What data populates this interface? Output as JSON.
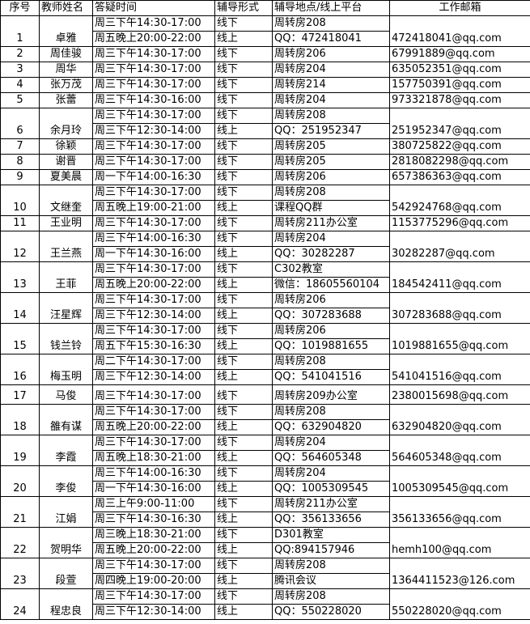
{
  "headers": [
    "序号",
    "教师姓名",
    "答疑时间",
    "辅导形式",
    "辅导地点/线上平台",
    "工作邮箱"
  ],
  "rows": [
    {
      "no": "1",
      "name": "卓雅",
      "email": "472418041@qq.com",
      "slots": [
        {
          "time": "周三下午14:30-17:00",
          "form": "线下",
          "place": "周转房208"
        },
        {
          "time": "周五晚上20:00-22:00",
          "form": "线上",
          "place": "QQ：472418041"
        }
      ]
    },
    {
      "no": "2",
      "name": "周佳骏",
      "email": "67991889@qq.com",
      "slots": [
        {
          "time": "周三下午14:30-17:00",
          "form": "线下",
          "place": "周转房206"
        }
      ]
    },
    {
      "no": "3",
      "name": "周华",
      "email": "635052351@qq.com",
      "slots": [
        {
          "time": "周三下午14:30-17:00",
          "form": "线下",
          "place": "周转房204"
        }
      ]
    },
    {
      "no": "4",
      "name": "张万茂",
      "email": "157750391@qq.com",
      "slots": [
        {
          "time": "周三下午14:30-17:00",
          "form": "线下",
          "place": "周转房214"
        }
      ]
    },
    {
      "no": "5",
      "name": "张蕾",
      "email": "973321878@qq.com",
      "slots": [
        {
          "time": "周三下午14:30-16:00",
          "form": "线下",
          "place": "周转房204"
        }
      ]
    },
    {
      "no": "6",
      "name": "余月玲",
      "email": "251952347@qq.com",
      "slots": [
        {
          "time": "周三下午14:30-17:00",
          "form": "线下",
          "place": "周转房208"
        },
        {
          "time": "周三下午12:30-14:00",
          "form": "线上",
          "place": "QQ：251952347"
        }
      ]
    },
    {
      "no": "7",
      "name": "徐颖",
      "email": "380725822@qq.com",
      "slots": [
        {
          "time": "周三下午14:30-17:00",
          "form": "线下",
          "place": "周转房205"
        }
      ]
    },
    {
      "no": "8",
      "name": "谢晋",
      "email": "2818082298@qq.com",
      "slots": [
        {
          "time": "周三下午14:30-17:00",
          "form": "线下",
          "place": "周转房205"
        }
      ]
    },
    {
      "no": "9",
      "name": "夏美晨",
      "email": "657386363@qq.com",
      "slots": [
        {
          "time": "周一下午14:00-16:30",
          "form": "线下",
          "place": "周转房206"
        }
      ]
    },
    {
      "no": "10",
      "name": "文继奎",
      "email": "542924768@qq.com",
      "slots": [
        {
          "time": "周三下午14:30-17:00",
          "form": "线下",
          "place": "周转房208"
        },
        {
          "time": "周五晚上19:00-21:00",
          "form": "线上",
          "place": "课程QQ群"
        }
      ]
    },
    {
      "no": "11",
      "name": "王业明",
      "email": "1153775296@qq.com",
      "slots": [
        {
          "time": "周三下午14:30-17:00",
          "form": "线下",
          "place": "周转房211办公室"
        }
      ]
    },
    {
      "no": "12",
      "name": "王兰燕",
      "email": "30282287@qq.com",
      "slots": [
        {
          "time": "周三下午14:00-16:30",
          "form": "线下",
          "place": "周转房204"
        },
        {
          "time": "周一下午14:30-16:00",
          "form": "线上",
          "place": "QQ：30282287"
        }
      ]
    },
    {
      "no": "13",
      "name": "王菲",
      "email": "184542411@qq.com",
      "slots": [
        {
          "time": "周三下午14:30-17:00",
          "form": "线下",
          "place": "C302教室"
        },
        {
          "time": "周五晚上20:00-22:00",
          "form": "线上",
          "place": "微信：18605560104"
        }
      ]
    },
    {
      "no": "14",
      "name": "汪星辉",
      "email": "307283688@qq.com",
      "slots": [
        {
          "time": "周三下午14:30-17:00",
          "form": "线下",
          "place": "周转房206"
        },
        {
          "time": "周三下午12:30-14:00",
          "form": "线上",
          "place": "QQ：307283688"
        }
      ]
    },
    {
      "no": "15",
      "name": "钱兰铃",
      "email": "1019881655@qq.com",
      "slots": [
        {
          "time": "周三下午14:30-17:00",
          "form": "线下",
          "place": "周转房206"
        },
        {
          "time": "周五下午15:30-16:30",
          "form": "线上",
          "place": "QQ：1019881655"
        }
      ]
    },
    {
      "no": "16",
      "name": "梅玉明",
      "email": "541041516@qq.com",
      "slots": [
        {
          "time": "周二下午14:30-17:00",
          "form": "线下",
          "place": "周转房208"
        },
        {
          "time": "周三下午12:30-14:00",
          "form": "线上",
          "place": "QQ：541041516"
        }
      ]
    },
    {
      "no": "17",
      "name": "马俊",
      "email": "2380015698@qq.com",
      "tall": true,
      "slots": [
        {
          "time": "周三下午14:30-17:00",
          "form": "线下",
          "place": "周转房209办公室"
        }
      ]
    },
    {
      "no": "18",
      "name": "雒有谋",
      "email": "632904820@qq.com",
      "slots": [
        {
          "time": "周三下午14:30-17:00",
          "form": "线下",
          "place": "周转房208"
        },
        {
          "time": "周五晚上20:00-22:00",
          "form": "线上",
          "place": "QQ：632904820"
        }
      ]
    },
    {
      "no": "19",
      "name": "李霞",
      "email": "564605348@qq.com",
      "slots": [
        {
          "time": "周三下午14:30-17:00",
          "form": "线下",
          "place": "周转房204"
        },
        {
          "time": "周五晚上18:30-21:00",
          "form": "线上",
          "place": "QQ：564605348"
        }
      ]
    },
    {
      "no": "20",
      "name": "李俊",
      "email": "1005309545@qq.com",
      "slots": [
        {
          "time": "周三下午14:00-16:30",
          "form": "线下",
          "place": "周转房204"
        },
        {
          "time": "周一下午14:30-16:00",
          "form": "线上",
          "place": "QQ：1005309545"
        }
      ]
    },
    {
      "no": "21",
      "name": "江娟",
      "email": "356133656@qq.com",
      "slots": [
        {
          "time": "周三上午9:00-11:00",
          "form": "线下",
          "place": "周转房211办公室"
        },
        {
          "time": "周三下午14:30-16:30",
          "form": "线上",
          "place": "QQ：356133656"
        }
      ]
    },
    {
      "no": "22",
      "name": "贺明华",
      "email": "hemh100@qq.com",
      "slots": [
        {
          "time": "周三晚上18:30-21:00",
          "form": "线下",
          "place": "D301教室"
        },
        {
          "time": "周五晚上20:00-22:00",
          "form": "线上",
          "place": "QQ:894157946"
        }
      ]
    },
    {
      "no": "23",
      "name": "段萱",
      "email": "1364411523@126.com",
      "slots": [
        {
          "time": "周三下午14:30-17:00",
          "form": "线下",
          "place": "周转房208"
        },
        {
          "time": "周四晚上19:00-20:00",
          "form": "线上",
          "place": "腾讯会议"
        }
      ]
    },
    {
      "no": "24",
      "name": "程忠良",
      "email": "550228020@qq.com",
      "slots": [
        {
          "time": "周三下午14:30-17:00",
          "form": "线下",
          "place": "周转房208"
        },
        {
          "time": "周三下午12:30-14:00",
          "form": "线上",
          "place": "QQ：550228020"
        }
      ]
    }
  ]
}
